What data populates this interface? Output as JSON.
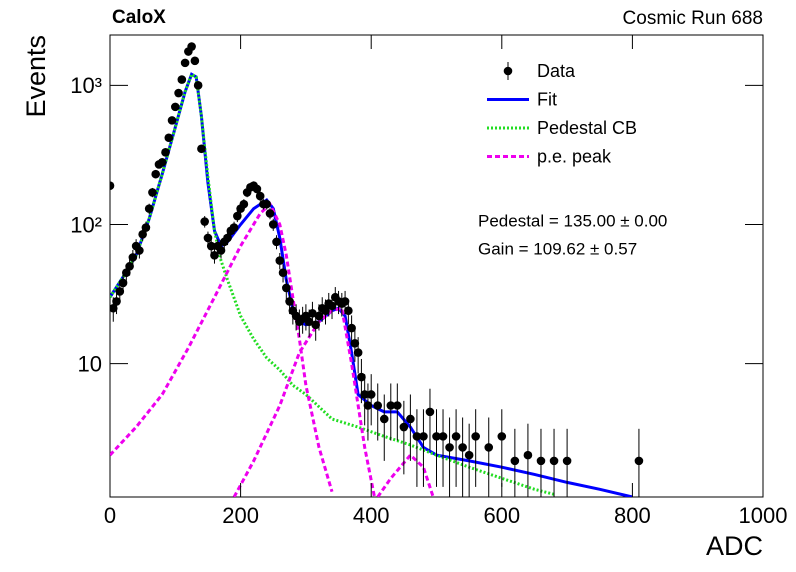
{
  "chart_data": {
    "type": "scatter",
    "title": "CaloX",
    "subtitle": "Cosmic Run 688",
    "x_label": "ADC",
    "y_label": "Events",
    "annotations": [
      "Pedestal = 135.00 ± 0.00",
      "Gain = 109.62 ± 0.57"
    ],
    "xlim": [
      0,
      1000
    ],
    "xticks": [
      0,
      200,
      400,
      600,
      800,
      1000
    ],
    "ylim": [
      1.1,
      2300
    ],
    "yticks": [
      10,
      {
        "value": 100,
        "label": "10²"
      },
      {
        "value": 1000,
        "label": "10³"
      }
    ],
    "log_y": true,
    "legend": "upper right",
    "series": [
      {
        "name": "Data",
        "color": "#000000",
        "style": "points",
        "x": [
          0,
          5,
          10,
          15,
          20,
          25,
          30,
          35,
          40,
          45,
          50,
          55,
          60,
          65,
          70,
          75,
          80,
          85,
          90,
          95,
          100,
          105,
          110,
          115,
          120,
          125,
          130,
          135,
          140,
          145,
          150,
          155,
          160,
          165,
          170,
          175,
          180,
          185,
          190,
          195,
          200,
          205,
          210,
          215,
          220,
          225,
          230,
          235,
          240,
          245,
          250,
          255,
          260,
          265,
          270,
          275,
          280,
          285,
          290,
          295,
          300,
          305,
          310,
          315,
          320,
          325,
          330,
          335,
          340,
          345,
          350,
          355,
          360,
          365,
          370,
          375,
          380,
          385,
          390,
          395,
          400,
          410,
          420,
          430,
          440,
          450,
          460,
          470,
          480,
          490,
          500,
          510,
          520,
          530,
          540,
          550,
          560,
          580,
          600,
          620,
          640,
          660,
          680,
          700,
          810
        ],
        "values": [
          190,
          25,
          28,
          33,
          38,
          45,
          50,
          58,
          70,
          65,
          85,
          95,
          130,
          170,
          230,
          270,
          280,
          330,
          420,
          560,
          700,
          880,
          1100,
          1450,
          1750,
          1900,
          1500,
          1000,
          350,
          105,
          80,
          70,
          60,
          70,
          65,
          75,
          80,
          90,
          95,
          115,
          130,
          140,
          170,
          185,
          190,
          180,
          160,
          140,
          140,
          120,
          100,
          75,
          55,
          45,
          35,
          28,
          24,
          22,
          20,
          21,
          22,
          20,
          23,
          19,
          22,
          25,
          24,
          27,
          26,
          30,
          28,
          27,
          28,
          24,
          18,
          14,
          12,
          8,
          6,
          5,
          6,
          5,
          4,
          5,
          5,
          3.5,
          4,
          3,
          3,
          4.5,
          3,
          3,
          2.5,
          3,
          2.5,
          2.2,
          3,
          2.5,
          3,
          2,
          2.2,
          2,
          2,
          2,
          2
        ],
        "errors": [
          14,
          5,
          5.3,
          5.7,
          6.2,
          6.7,
          7.1,
          7.6,
          8.4,
          8.1,
          9.2,
          9.7,
          11,
          13,
          15,
          16,
          17,
          18,
          20,
          24,
          26,
          30,
          33,
          38,
          42,
          44,
          39,
          32,
          19,
          10,
          8.9,
          8.4,
          7.7,
          8.4,
          8.1,
          8.7,
          8.9,
          9.5,
          9.7,
          11,
          11,
          12,
          13,
          14,
          14,
          13,
          13,
          12,
          12,
          11,
          10,
          8.7,
          7.4,
          6.7,
          5.9,
          5.3,
          4.9,
          4.7,
          4.5,
          4.6,
          4.7,
          4.5,
          4.8,
          4.4,
          4.7,
          5,
          4.9,
          5.2,
          5.1,
          5.5,
          5.3,
          5.2,
          5.3,
          4.9,
          4.2,
          3.7,
          3.5,
          2.8,
          2.4,
          2.2,
          2.4,
          2.2,
          2,
          2.2,
          2.2,
          1.9,
          2,
          1.7,
          1.7,
          2.1,
          1.7,
          1.7,
          1.6,
          1.7,
          1.6,
          1.5,
          1.7,
          1.6,
          1.7,
          1.4,
          1.5,
          1.4,
          1.4,
          1.4,
          1.4
        ]
      },
      {
        "name": "Fit",
        "color": "#0000ff",
        "style": "line",
        "x": [
          0,
          20,
          40,
          60,
          80,
          100,
          115,
          125,
          132,
          140,
          150,
          160,
          170,
          180,
          200,
          220,
          240,
          250,
          260,
          270,
          280,
          290,
          300,
          320,
          340,
          350,
          360,
          370,
          380,
          400,
          420,
          440,
          460,
          480,
          500,
          550,
          600,
          650,
          700,
          750,
          800
        ],
        "values": [
          30,
          42,
          60,
          110,
          230,
          500,
          900,
          1200,
          1150,
          600,
          200,
          90,
          70,
          75,
          100,
          130,
          150,
          130,
          80,
          40,
          25,
          20,
          19,
          20,
          24,
          25,
          22,
          12,
          6,
          5,
          4.5,
          4.5,
          3.5,
          2.5,
          2.2,
          2,
          1.8,
          1.6,
          1.4,
          1.25,
          1.1
        ]
      },
      {
        "name": "Pedestal CB",
        "color": "#22dd22",
        "style": "dotted",
        "x": [
          0,
          20,
          40,
          60,
          80,
          100,
          115,
          125,
          132,
          140,
          150,
          160,
          170,
          180,
          200,
          220,
          240,
          260,
          280,
          300,
          340,
          380,
          420,
          460,
          500,
          550,
          600,
          650,
          680
        ],
        "values": [
          30,
          42,
          60,
          110,
          230,
          500,
          900,
          1200,
          1150,
          600,
          220,
          90,
          55,
          40,
          22,
          15,
          11,
          9,
          7,
          6,
          4,
          3.5,
          3,
          2.6,
          2.2,
          1.8,
          1.5,
          1.25,
          1.15
        ]
      },
      {
        "name": "p.e. peak",
        "color": "#ee00ee",
        "style": "dashed",
        "x": [
          0,
          40,
          80,
          120,
          160,
          200,
          230,
          245,
          260,
          270,
          280,
          290,
          300,
          320,
          340,
          null,
          190,
          220,
          260,
          290,
          320,
          340,
          355,
          370,
          390,
          405,
          null,
          410,
          430,
          460,
          480,
          495
        ],
        "values": [
          2.2,
          3.5,
          6,
          13,
          30,
          70,
          120,
          140,
          100,
          60,
          30,
          15,
          7,
          2.5,
          1.2,
          null,
          1.1,
          2,
          5,
          12,
          20,
          24,
          25,
          10,
          2.5,
          1.1,
          null,
          1.1,
          1.5,
          2.2,
          1.8,
          1.1
        ]
      }
    ]
  }
}
